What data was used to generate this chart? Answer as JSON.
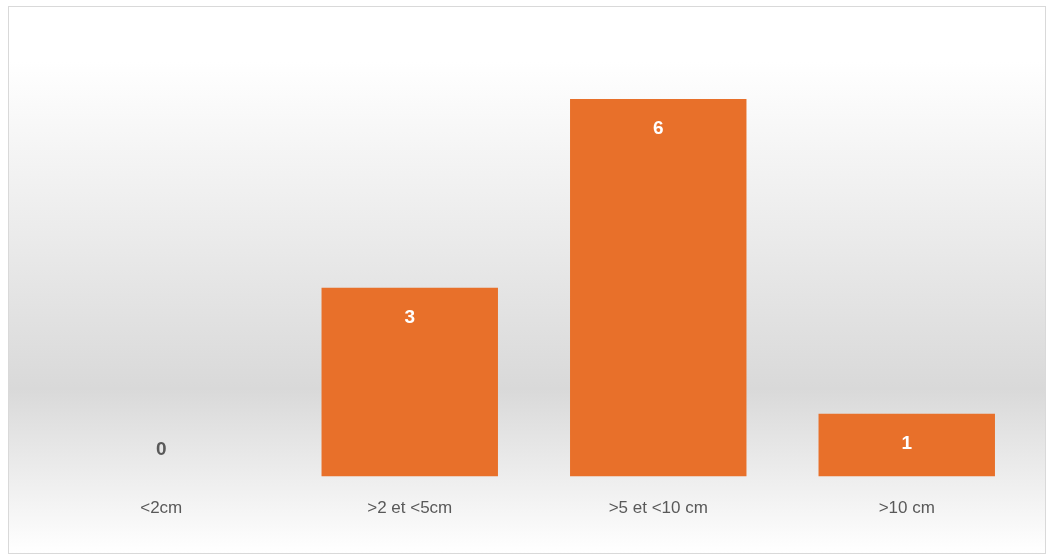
{
  "chart_data": {
    "type": "bar",
    "categories": [
      "<2cm",
      ">2 et <5cm",
      ">5 et <10 cm",
      ">10 cm"
    ],
    "values": [
      0,
      3,
      6,
      1
    ],
    "color": "#e8702a",
    "data_labels": true,
    "legend": false,
    "grid": false
  }
}
